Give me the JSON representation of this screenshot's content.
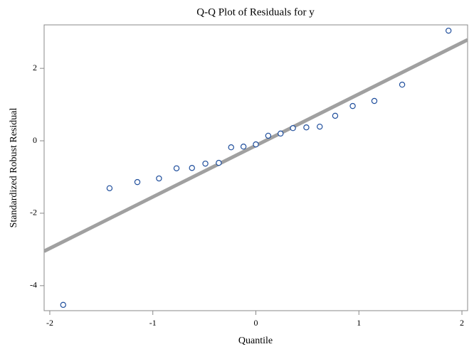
{
  "chart_data": {
    "type": "scatter",
    "title": "Q-Q Plot of Residuals for y",
    "x_label": "Quantile",
    "y_label": "Standardized Robust Residual",
    "x": [
      -1.87,
      -1.42,
      -1.15,
      -0.94,
      -0.77,
      -0.62,
      -0.49,
      -0.36,
      -0.24,
      -0.12,
      0,
      0.12,
      0.24,
      0.36,
      0.49,
      0.62,
      0.77,
      0.94,
      1.15,
      1.42,
      1.87
    ],
    "values": [
      -4.53,
      -1.31,
      -1.14,
      -1.04,
      -0.76,
      -0.75,
      -0.63,
      -0.61,
      -0.18,
      -0.16,
      -0.1,
      0.14,
      0.2,
      0.35,
      0.37,
      0.39,
      0.69,
      0.96,
      1.1,
      1.55,
      3.04
    ],
    "color": "#1f4e9c",
    "reference_line": {
      "intercept": -0.13,
      "slope": 1.42,
      "color": "#a0a0a0"
    },
    "xlim": [
      -2.055,
      2.055
    ],
    "xticks": [
      -2,
      -1,
      0,
      1,
      2
    ],
    "ylim": [
      -4.69,
      3.2
    ],
    "yticks": [
      -4,
      -2,
      0,
      2
    ]
  }
}
